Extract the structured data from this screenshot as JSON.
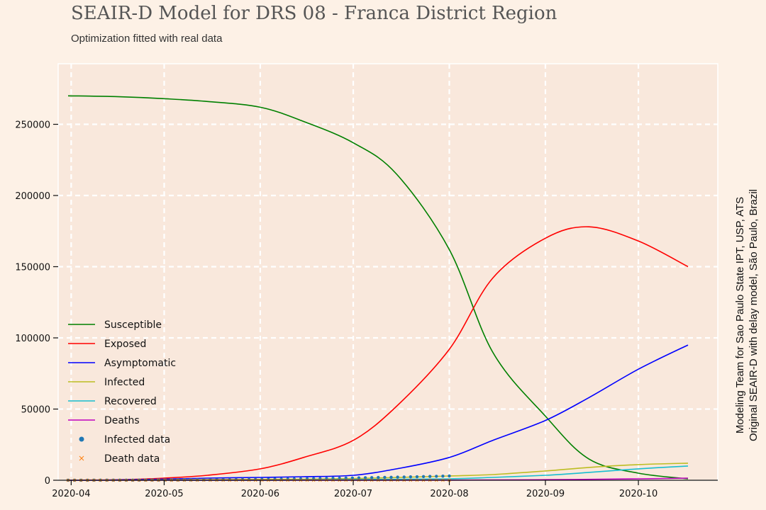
{
  "chart_data": {
    "type": "line",
    "title": "SEAIR-D Model for DRS 08 - Franca District Region",
    "subtitle": "Optimization fitted with real data",
    "xlabel": "",
    "ylabel": "",
    "x_start": "2020-03-31",
    "x_end": "2020-10-17",
    "x_ticks": [
      "2020-04",
      "2020-05",
      "2020-06",
      "2020-07",
      "2020-08",
      "2020-09",
      "2020-10"
    ],
    "ylim": [
      0,
      300000
    ],
    "y_ticks": [
      0,
      50000,
      100000,
      150000,
      200000,
      250000
    ],
    "grid": true,
    "legend_position": "lower-left",
    "series": [
      {
        "name": "Susceptible",
        "color": "#008000",
        "x": [
          "2020-03-31",
          "2020-04-15",
          "2020-05-01",
          "2020-05-15",
          "2020-06-01",
          "2020-06-15",
          "2020-07-01",
          "2020-07-15",
          "2020-08-01",
          "2020-08-15",
          "2020-09-01",
          "2020-09-15",
          "2020-10-01",
          "2020-10-17"
        ],
        "y": [
          270000,
          269500,
          268000,
          266000,
          262000,
          252000,
          237000,
          215000,
          162000,
          90000,
          45000,
          15000,
          5000,
          1000
        ]
      },
      {
        "name": "Exposed",
        "color": "#ff0000",
        "x": [
          "2020-03-31",
          "2020-04-15",
          "2020-05-01",
          "2020-05-15",
          "2020-06-01",
          "2020-06-15",
          "2020-07-01",
          "2020-07-15",
          "2020-08-01",
          "2020-08-15",
          "2020-09-01",
          "2020-09-15",
          "2020-10-01",
          "2020-10-17"
        ],
        "y": [
          100,
          300,
          1500,
          3500,
          8000,
          16000,
          28000,
          52000,
          92000,
          142000,
          170000,
          178000,
          168000,
          150000
        ]
      },
      {
        "name": "Asymptomatic",
        "color": "#0000ff",
        "x": [
          "2020-03-31",
          "2020-04-15",
          "2020-05-01",
          "2020-05-15",
          "2020-06-01",
          "2020-06-15",
          "2020-07-01",
          "2020-07-15",
          "2020-08-01",
          "2020-08-15",
          "2020-09-01",
          "2020-09-15",
          "2020-10-01",
          "2020-10-17"
        ],
        "y": [
          0,
          200,
          800,
          1500,
          2000,
          2500,
          3500,
          8000,
          16000,
          28000,
          42000,
          58000,
          78000,
          95000
        ]
      },
      {
        "name": "Infected",
        "color": "#bcbd22",
        "x": [
          "2020-03-31",
          "2020-05-01",
          "2020-06-01",
          "2020-07-01",
          "2020-08-01",
          "2020-08-15",
          "2020-09-01",
          "2020-09-15",
          "2020-10-01",
          "2020-10-17"
        ],
        "y": [
          0,
          200,
          600,
          1200,
          3000,
          4000,
          6500,
          9000,
          11000,
          12000
        ]
      },
      {
        "name": "Recovered",
        "color": "#17becf",
        "x": [
          "2020-03-31",
          "2020-05-01",
          "2020-06-01",
          "2020-07-01",
          "2020-08-01",
          "2020-08-15",
          "2020-09-01",
          "2020-09-15",
          "2020-10-01",
          "2020-10-17"
        ],
        "y": [
          0,
          0,
          0,
          500,
          1000,
          2000,
          3500,
          5500,
          8000,
          10000
        ]
      },
      {
        "name": "Deaths",
        "color": "#bf00bf",
        "x": [
          "2020-03-31",
          "2020-06-01",
          "2020-08-01",
          "2020-09-01",
          "2020-10-01",
          "2020-10-17"
        ],
        "y": [
          0,
          0,
          100,
          400,
          1000,
          1500
        ]
      }
    ],
    "scatter_series": [
      {
        "name": "Infected data",
        "color": "#1f77b4",
        "marker": "circle",
        "x_start": "2020-03-31",
        "x_end": "2020-08-01",
        "count": 60,
        "y_start": 50,
        "y_end": 3000
      },
      {
        "name": "Death data",
        "color": "#ff7f0e",
        "marker": "x",
        "x_start": "2020-03-31",
        "x_end": "2020-08-01",
        "count": 60,
        "y_start": 0,
        "y_end": 40
      }
    ],
    "side_note": [
      "Modeling Team for Sao Paulo State IPT, USP, ATS",
      "Original SEAIR-D with delay model, São Paulo, Brazil"
    ]
  }
}
